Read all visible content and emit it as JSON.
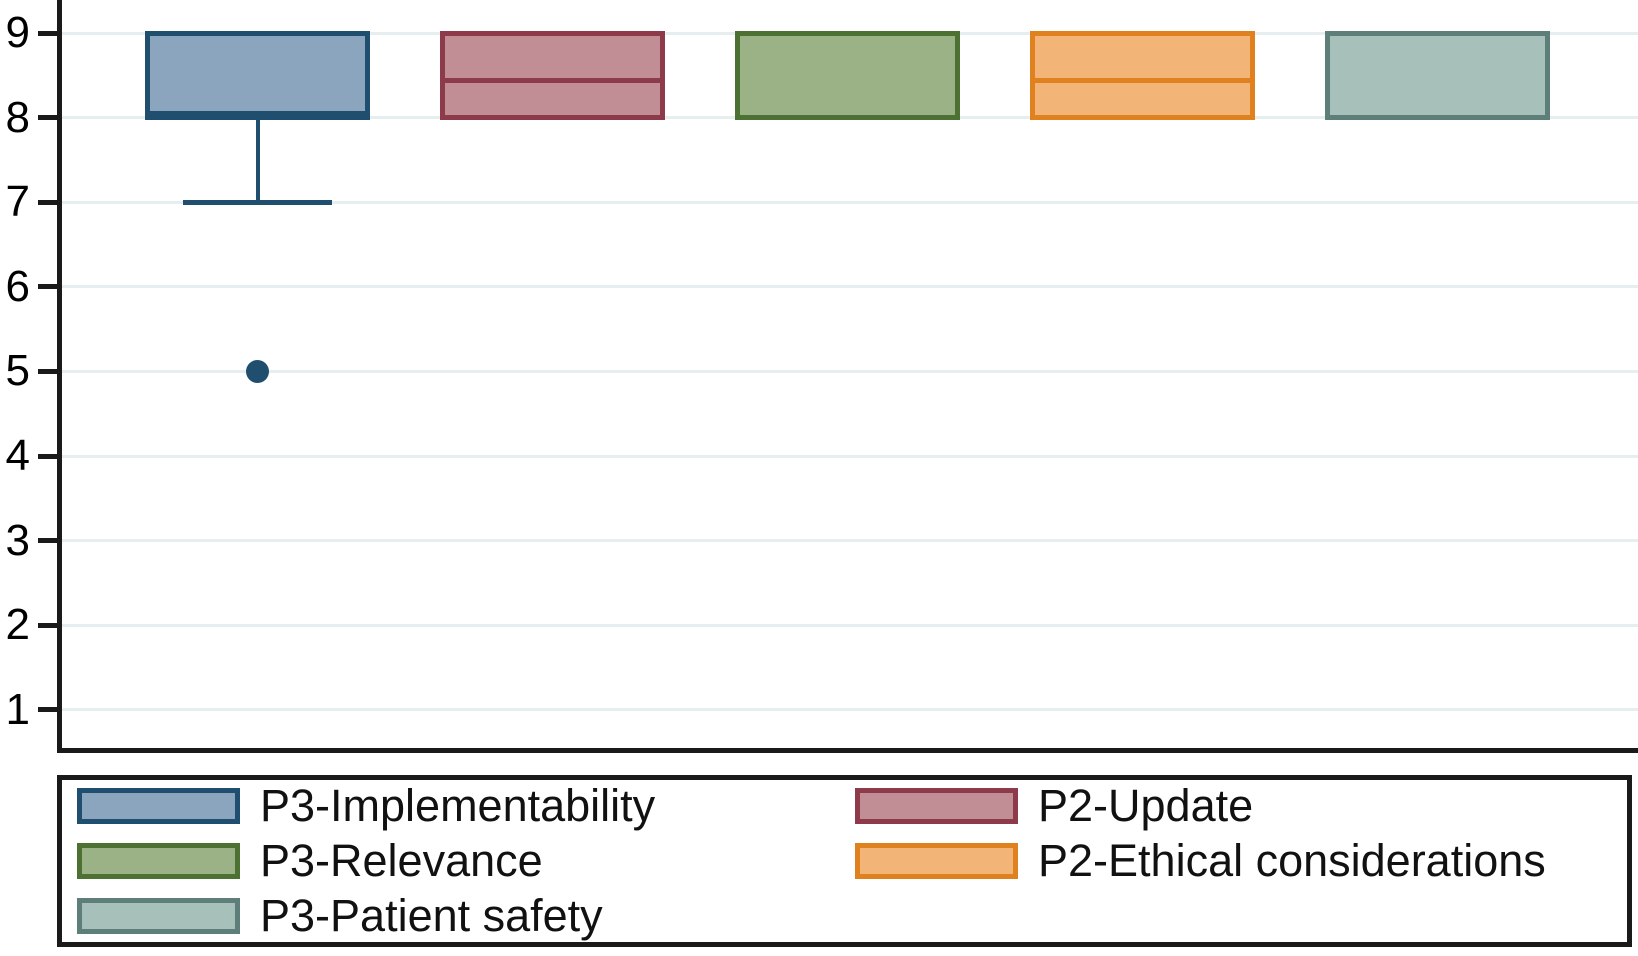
{
  "chart_data": {
    "type": "box",
    "title": "",
    "xlabel": "",
    "ylabel": "",
    "ylim": [
      1,
      9
    ],
    "yticks": [
      "1",
      "2",
      "3",
      "4",
      "5",
      "6",
      "7",
      "8",
      "9"
    ],
    "grid": true,
    "legend_position": "bottom-framed-two-columns",
    "series": [
      {
        "name": "P3-Implementability",
        "fill": "#8CA5BE",
        "stroke": "#1F4E6E",
        "q1": 8,
        "q3": 9,
        "median": 8,
        "median_distinct": true,
        "whisker_low": 7,
        "whisker_high": 9,
        "outliers": [
          5
        ]
      },
      {
        "name": "P2-Update",
        "fill": "#C18E96",
        "stroke": "#8D3B4A",
        "q1": 8,
        "q3": 9,
        "median": 8.5,
        "median_distinct": true,
        "whisker_low": 8,
        "whisker_high": 9,
        "outliers": []
      },
      {
        "name": "P3-Relevance",
        "fill": "#9BB186",
        "stroke": "#4D7132",
        "q1": 8,
        "q3": 9,
        "median": 8,
        "median_distinct": false,
        "whisker_low": 8,
        "whisker_high": 9,
        "outliers": []
      },
      {
        "name": "P2-Ethical considerations",
        "fill": "#F2B577",
        "stroke": "#DE811E",
        "q1": 8,
        "q3": 9,
        "median": 8.5,
        "median_distinct": true,
        "whisker_low": 8,
        "whisker_high": 9,
        "outliers": []
      },
      {
        "name": "P3-Patient safety",
        "fill": "#A8C0BA",
        "stroke": "#5E7F79",
        "q1": 8,
        "q3": 9,
        "median": 8,
        "median_distinct": false,
        "whisker_low": 8,
        "whisker_high": 9,
        "outliers": []
      }
    ],
    "legend_columns": [
      [
        0,
        2,
        4
      ],
      [
        1,
        3
      ]
    ],
    "colors": {
      "gridline": "#E6EEF0",
      "axis": "#1a1a1a",
      "text": "#000000",
      "background": "#ffffff"
    }
  }
}
